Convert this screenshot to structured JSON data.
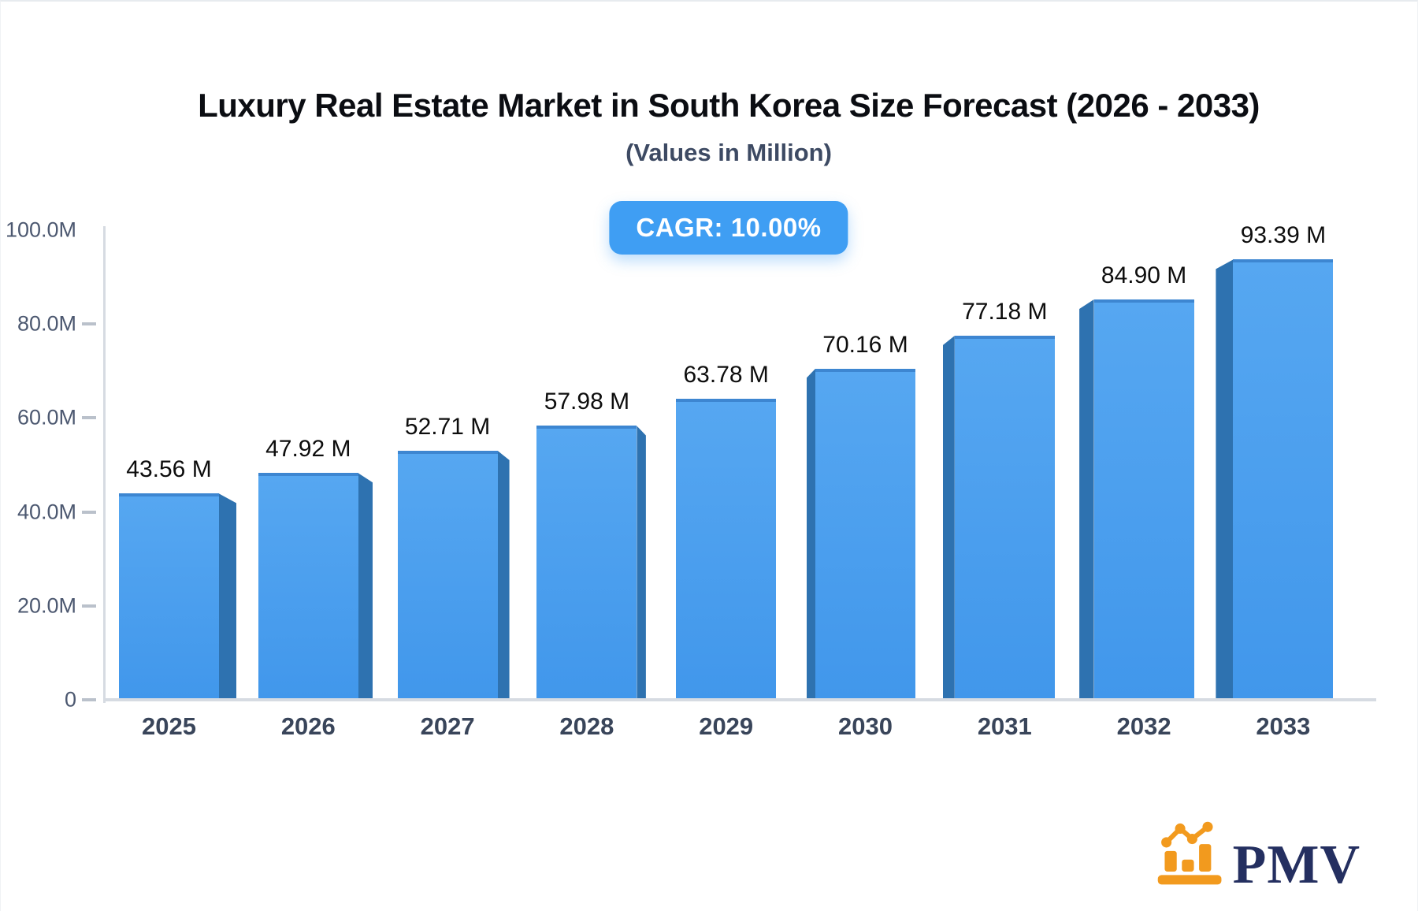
{
  "header": {
    "title": "Luxury Real Estate Market in South Korea Size Forecast (2026 - 2033)",
    "subtitle": "(Values in Million)",
    "cagr_badge": "CAGR: 10.00%"
  },
  "chart_data": {
    "type": "bar",
    "title": "Luxury Real Estate Market in South Korea Size Forecast (2026 - 2033)",
    "subtitle": "(Values in Million)",
    "unit": "Million",
    "cagr_percent": "10.00%",
    "categories": [
      "2025",
      "2026",
      "2027",
      "2028",
      "2029",
      "2030",
      "2031",
      "2032",
      "2033"
    ],
    "values": [
      43.56,
      47.92,
      52.71,
      57.98,
      63.78,
      70.16,
      77.18,
      84.9,
      93.39
    ],
    "value_labels": [
      "43.56 M",
      "47.92 M",
      "52.71 M",
      "57.98 M",
      "63.78 M",
      "70.16 M",
      "77.18 M",
      "84.90 M",
      "93.39 M"
    ],
    "ylim": [
      0,
      100
    ],
    "y_ticks": [
      {
        "value": 0,
        "label": "0"
      },
      {
        "value": 20,
        "label": "20.0M"
      },
      {
        "value": 40,
        "label": "40.0M"
      },
      {
        "value": 60,
        "label": "60.0M"
      },
      {
        "value": 80,
        "label": "80.0M"
      },
      {
        "value": 100,
        "label": "100.0M"
      }
    ],
    "grid": false,
    "legend": "none",
    "colors": {
      "bar_front_top": "#56a7f1",
      "bar_front_bottom": "#4197eb",
      "bar_top_edge": "#3d86d1",
      "bar_side": "#2e72b0",
      "axis_line": "#d6dbe2",
      "tick_label": "#4c5870",
      "category_label": "#39455a",
      "value_label": "#0d0d0d",
      "badge_bg": "#3f9ef3",
      "badge_text": "#ffffff"
    }
  },
  "logo": {
    "text": "PMV",
    "icon": "bar-chart-logo-icon",
    "icon_color": "#f29a1e",
    "text_color": "#242f60"
  }
}
